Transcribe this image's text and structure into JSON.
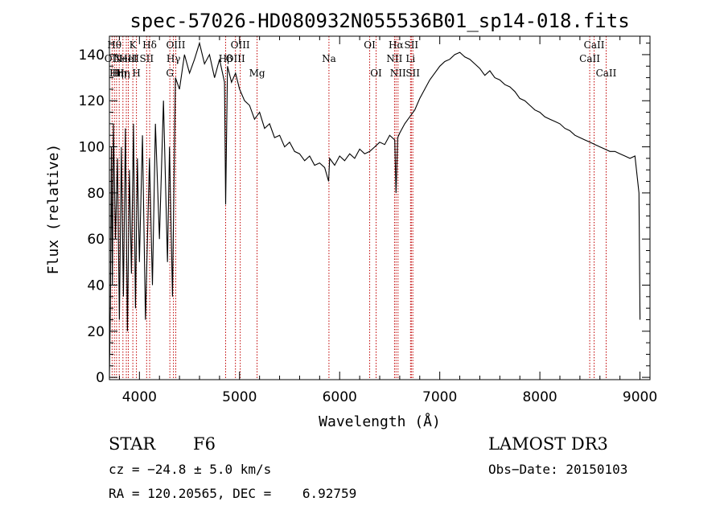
{
  "chart_data": {
    "type": "line",
    "title": "spec-57026-HD080932N055536B01_sp14-018.fits",
    "xlabel": "Wavelength (Å)",
    "ylabel": "Flux (relative)",
    "xlim": [
      3700,
      9100
    ],
    "ylim": [
      -1,
      148
    ],
    "xticks": [
      4000,
      5000,
      6000,
      7000,
      8000,
      9000
    ],
    "yticks": [
      0,
      20,
      40,
      60,
      80,
      100,
      120,
      140
    ],
    "series": [
      {
        "name": "flux",
        "x": [
          3700,
          3710,
          3720,
          3730,
          3740,
          3760,
          3780,
          3800,
          3820,
          3840,
          3860,
          3880,
          3900,
          3920,
          3940,
          3960,
          3980,
          4000,
          4030,
          4060,
          4100,
          4130,
          4160,
          4200,
          4240,
          4280,
          4300,
          4330,
          4360,
          4400,
          4450,
          4500,
          4550,
          4600,
          4650,
          4700,
          4750,
          4800,
          4850,
          4861,
          4880,
          4920,
          4960,
          5000,
          5050,
          5100,
          5150,
          5200,
          5250,
          5300,
          5350,
          5400,
          5450,
          5500,
          5550,
          5600,
          5650,
          5700,
          5750,
          5800,
          5850,
          5890,
          5900,
          5950,
          6000,
          6050,
          6100,
          6150,
          6200,
          6250,
          6300,
          6350,
          6400,
          6450,
          6500,
          6550,
          6563,
          6580,
          6600,
          6650,
          6700,
          6750,
          6800,
          6850,
          6900,
          6950,
          7000,
          7050,
          7100,
          7150,
          7200,
          7250,
          7300,
          7350,
          7400,
          7450,
          7500,
          7550,
          7600,
          7650,
          7700,
          7750,
          7800,
          7850,
          7900,
          7950,
          8000,
          8050,
          8100,
          8150,
          8200,
          8250,
          8300,
          8350,
          8400,
          8450,
          8500,
          8550,
          8600,
          8650,
          8700,
          8750,
          8800,
          8850,
          8900,
          8950,
          8990,
          9000
        ],
        "y": [
          0,
          30,
          100,
          40,
          110,
          60,
          95,
          25,
          100,
          35,
          108,
          20,
          90,
          45,
          110,
          30,
          95,
          50,
          105,
          25,
          95,
          40,
          110,
          60,
          120,
          50,
          100,
          35,
          130,
          125,
          140,
          132,
          138,
          145,
          136,
          140,
          130,
          138,
          128,
          75,
          135,
          128,
          132,
          125,
          120,
          118,
          112,
          115,
          108,
          110,
          104,
          105,
          100,
          102,
          98,
          97,
          94,
          96,
          92,
          93,
          91,
          85,
          95,
          92,
          96,
          94,
          97,
          95,
          99,
          97,
          98,
          100,
          102,
          101,
          105,
          103,
          80,
          104,
          106,
          110,
          113,
          116,
          121,
          125,
          129,
          132,
          135,
          137,
          138,
          140,
          141,
          139,
          138,
          136,
          134,
          131,
          133,
          130,
          129,
          127,
          126,
          124,
          121,
          120,
          118,
          116,
          115,
          113,
          112,
          111,
          110,
          108,
          107,
          105,
          104,
          103,
          102,
          101,
          100,
          99,
          98,
          98,
          97,
          96,
          95,
          96,
          80,
          25
        ]
      }
    ],
    "reference_lines": [
      {
        "x": 3727,
        "label": "OII",
        "row": 2
      },
      {
        "x": 3750,
        "label": "Hθ",
        "row": 1
      },
      {
        "x": 3771,
        "label": "Hη",
        "row": 3
      },
      {
        "x": 3798,
        "label": "Hη",
        "row": 3
      },
      {
        "x": 3835,
        "label": "Hη",
        "row": 3
      },
      {
        "x": 3869,
        "label": "NeIII",
        "row": 2
      },
      {
        "x": 3889,
        "label": "HeI",
        "row": 2
      },
      {
        "x": 3934,
        "label": "K",
        "row": 1
      },
      {
        "x": 3970,
        "label": "H",
        "row": 3
      },
      {
        "x": 4072,
        "label": "SII",
        "row": 2
      },
      {
        "x": 4102,
        "label": "Hδ",
        "row": 1
      },
      {
        "x": 4304,
        "label": "G",
        "row": 3
      },
      {
        "x": 4340,
        "label": "Hγ",
        "row": 2
      },
      {
        "x": 4363,
        "label": "OIII",
        "row": 1
      },
      {
        "x": 4861,
        "label": "Hβ",
        "row": 2
      },
      {
        "x": 4959,
        "label": "OIII",
        "row": 2
      },
      {
        "x": 5007,
        "label": "OIII",
        "row": 1
      },
      {
        "x": 5175,
        "label": "Mg",
        "row": 3
      },
      {
        "x": 5893,
        "label": "Na",
        "row": 2
      },
      {
        "x": 6300,
        "label": "OI",
        "row": 1
      },
      {
        "x": 6364,
        "label": "OI",
        "row": 3
      },
      {
        "x": 6548,
        "label": "NII",
        "row": 2
      },
      {
        "x": 6563,
        "label": "Hα",
        "row": 1
      },
      {
        "x": 6583,
        "label": "NII",
        "row": 3
      },
      {
        "x": 6708,
        "label": "Li",
        "row": 2
      },
      {
        "x": 6716,
        "label": "SII",
        "row": 1
      },
      {
        "x": 6731,
        "label": "SII",
        "row": 3
      },
      {
        "x": 8498,
        "label": "CaII",
        "row": 2
      },
      {
        "x": 8542,
        "label": "CaII",
        "row": 1
      },
      {
        "x": 8662,
        "label": "CaII",
        "row": 3
      }
    ]
  },
  "info": {
    "object_class": "STAR",
    "subclass": "F6",
    "survey": "LAMOST DR3",
    "velocity": "cz = −24.8 ± 5.0 km/s",
    "obs_date": "Obs−Date: 20150103",
    "coords": "RA = 120.20565, DEC =    6.92759"
  },
  "colors": {
    "line": "#000000",
    "reference": "#c00000"
  }
}
